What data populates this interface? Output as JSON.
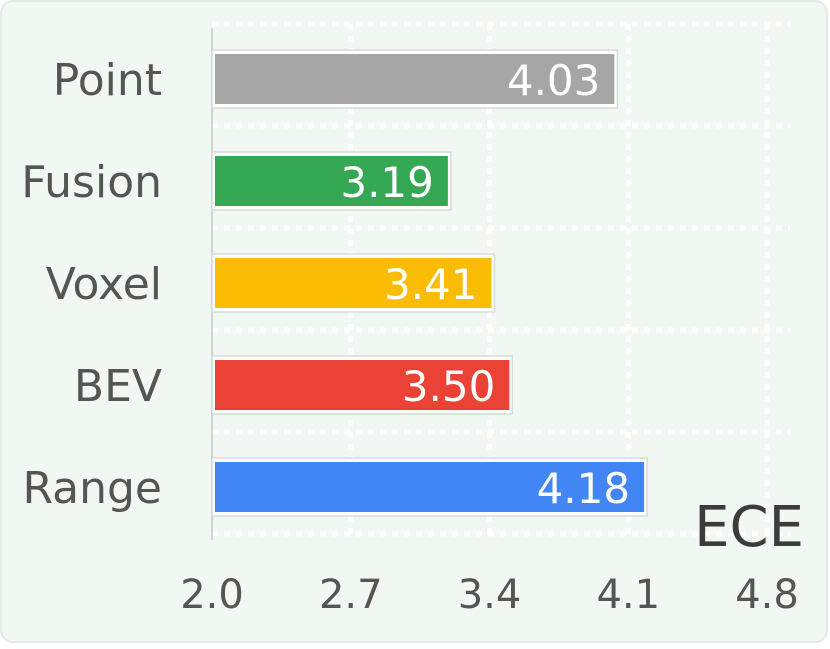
{
  "chart_data": {
    "type": "bar",
    "orientation": "horizontal",
    "categories": [
      "Point",
      "Fusion",
      "Voxel",
      "BEV",
      "Range"
    ],
    "values": [
      4.03,
      3.19,
      3.41,
      3.5,
      4.18
    ],
    "value_labels": [
      "4.03",
      "3.19",
      "3.41",
      "3.50",
      "4.18"
    ],
    "colors": [
      "#a6a6a6",
      "#34a853",
      "#fbbc04",
      "#ea4335",
      "#4285f4"
    ],
    "xlabel": "ECE",
    "xlim": [
      2.0,
      4.8
    ],
    "xticks": [
      "2.0",
      "2.7",
      "3.4",
      "4.1",
      "4.8"
    ],
    "grid": true,
    "background": "#f1f7f2"
  }
}
